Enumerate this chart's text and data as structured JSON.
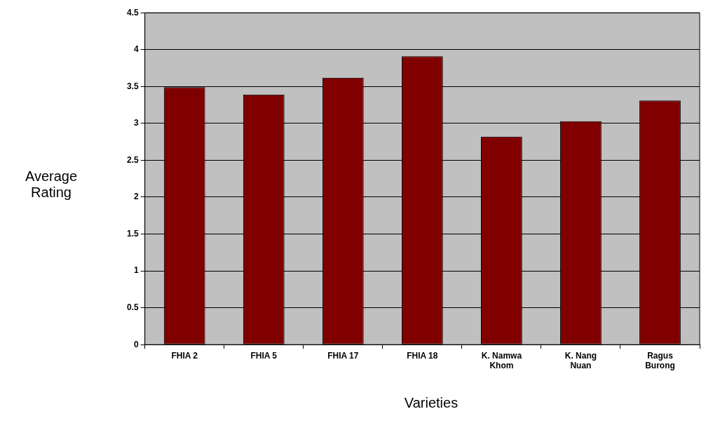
{
  "chart_data": {
    "type": "bar",
    "xlabel": "Varieties",
    "ylabel": "Average Rating",
    "categories": [
      "FHIA 2",
      "FHIA 5",
      "FHIA 17",
      "FHIA 18",
      "K. Namwa Khom",
      "K. Nang Nuan",
      "Ragus Burong"
    ],
    "values": [
      3.49,
      3.39,
      3.62,
      3.91,
      2.82,
      3.03,
      3.31
    ],
    "color": "#800000",
    "ylim": [
      0,
      4.5
    ],
    "yticks": [
      0,
      0.5,
      1,
      1.5,
      2,
      2.5,
      3,
      3.5,
      4,
      4.5
    ],
    "grid": "y",
    "legend": false
  }
}
